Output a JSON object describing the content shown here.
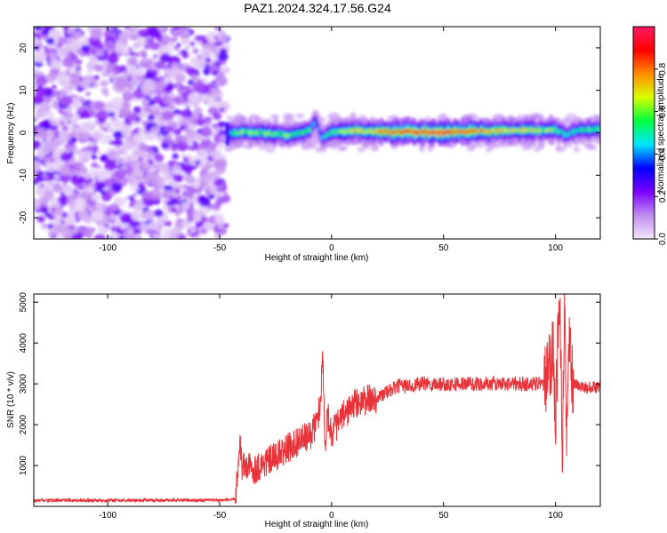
{
  "figure": {
    "title": "PAZ1.2024.324.17.56.G24"
  },
  "chart_data": [
    {
      "type": "heatmap",
      "title": "PAZ1.2024.324.17.56.G24",
      "xlabel": "Height of straight line (km)",
      "ylabel": "Frequency (Hz)",
      "xlim": [
        -133,
        120
      ],
      "ylim": [
        -25,
        25
      ],
      "x_ticks": [
        -100,
        -50,
        0,
        50,
        100
      ],
      "y_ticks": [
        -20,
        -10,
        0,
        10,
        20
      ],
      "colorbar": {
        "label": "Normalized spectral amplitude",
        "range": [
          0.0,
          1.0
        ],
        "ticks": [
          0.0,
          0.2,
          0.4,
          0.6,
          0.8
        ],
        "colors": [
          "#f2e6fa",
          "#c18df0",
          "#7b00ff",
          "#0000ff",
          "#00e5ff",
          "#00ff40",
          "#d8ff00",
          "#ff8c00",
          "#ff0000",
          "#ff1a66"
        ]
      },
      "regions": [
        {
          "description": "noise",
          "x_range": [
            -133,
            -47
          ],
          "y_range": [
            -25,
            25
          ],
          "amplitude": [
            0.0,
            0.2
          ]
        },
        {
          "description": "signal ridge",
          "x_range": [
            -47,
            120
          ],
          "y_center": [
            0.0,
            1.0
          ],
          "amplitude": [
            0.4,
            1.0
          ]
        }
      ],
      "ridge": {
        "x": [
          -47,
          -40,
          -30,
          -20,
          -10,
          -7,
          -4,
          0,
          10,
          20,
          30,
          40,
          50,
          60,
          70,
          80,
          90,
          100,
          105,
          110,
          120
        ],
        "y": [
          -0.5,
          0.3,
          0.0,
          -0.5,
          0.3,
          3.0,
          -1.5,
          0.2,
          0.4,
          0.3,
          0.2,
          0.2,
          0.2,
          0.3,
          0.4,
          0.5,
          0.6,
          0.8,
          -0.5,
          0.7,
          0.9
        ],
        "amplitude": [
          0.5,
          0.6,
          0.6,
          0.6,
          0.55,
          0.4,
          0.5,
          0.6,
          0.7,
          0.75,
          0.85,
          0.9,
          0.95,
          0.85,
          0.75,
          0.7,
          0.7,
          0.6,
          0.5,
          0.55,
          0.55
        ]
      }
    },
    {
      "type": "line",
      "xlabel": "Height of straight line (km)",
      "ylabel": "SNR (10 * v/v)",
      "xlim": [
        -133,
        120
      ],
      "ylim": [
        0,
        5200
      ],
      "x_ticks": [
        -100,
        -50,
        0,
        50,
        100
      ],
      "y_ticks": [
        1000,
        2000,
        3000,
        4000,
        5000
      ],
      "line_color": "#e8333b",
      "series": [
        {
          "x": [
            -133,
            -120,
            -100,
            -80,
            -60,
            -50,
            -45,
            -43,
            -42,
            -41,
            -40,
            -38,
            -35,
            -30,
            -25,
            -20,
            -15,
            -10,
            -7,
            -5,
            -4,
            -3,
            -2,
            0,
            5,
            10,
            15,
            20,
            25,
            30,
            35,
            40,
            50,
            60,
            70,
            80,
            90,
            95,
            97,
            99,
            100,
            101,
            102,
            103,
            104,
            105,
            106,
            108,
            110,
            115,
            120
          ],
          "y": [
            140,
            150,
            145,
            150,
            150,
            150,
            155,
            200,
            700,
            1700,
            950,
            1000,
            900,
            1050,
            1200,
            1400,
            1600,
            1700,
            2000,
            2500,
            3900,
            1400,
            2300,
            1800,
            2200,
            2500,
            2600,
            2650,
            2800,
            2950,
            2950,
            3000,
            3000,
            3000,
            3000,
            3000,
            3000,
            3000,
            3300,
            3800,
            2000,
            3900,
            5100,
            900,
            5200,
            1500,
            3800,
            3000,
            2950,
            2900,
            2950
          ]
        }
      ]
    }
  ]
}
